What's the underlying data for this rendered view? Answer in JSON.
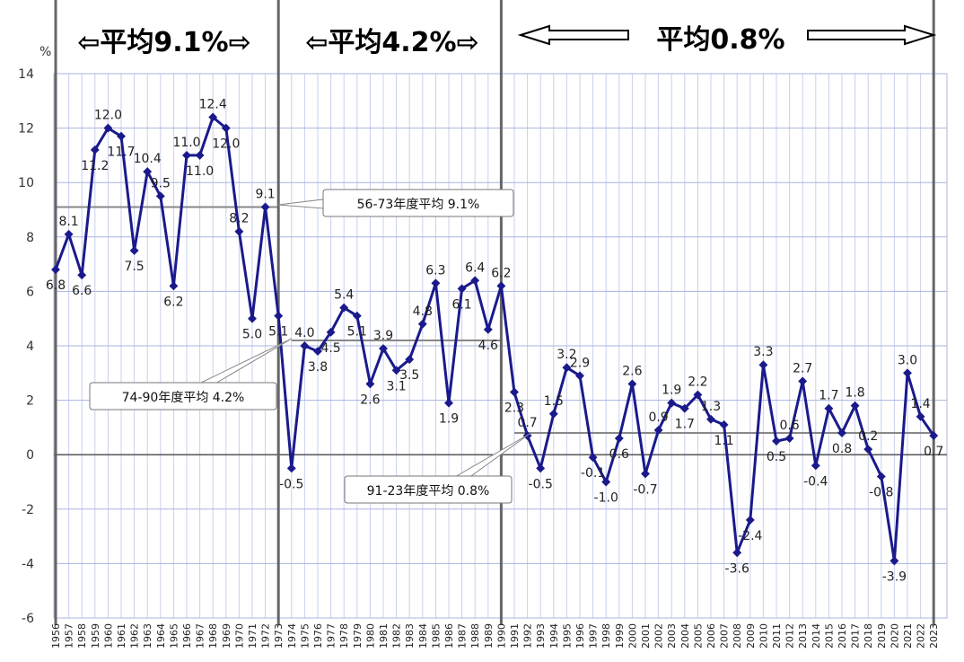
{
  "header": {
    "bands": [
      {
        "text": "⇦平均9.1%⇨",
        "color": "#000000"
      },
      {
        "text": "⇦平均4.2%⇨",
        "color": "#000000"
      },
      {
        "text": "平均0.8%",
        "color": "#e8262c"
      }
    ]
  },
  "callouts": [
    {
      "text": "56-73年度平均 9.1%"
    },
    {
      "text": "74-90年度平均 4.2%"
    },
    {
      "text": "91-23年度平均 0.8%"
    }
  ],
  "colors": {
    "line": "#1a1a8c",
    "grid": "#c8d0f0",
    "avg_line": "#888888",
    "separator": "#666666",
    "accent_red": "#e8262c"
  },
  "chart_data": {
    "type": "line",
    "yunit": "%",
    "ylim": [
      -6,
      14
    ],
    "yticks": [
      "14",
      "12",
      "10",
      "8",
      "6",
      "4",
      "2",
      "0",
      "-2",
      "-4",
      "-6"
    ],
    "grid": true,
    "x": [
      "1956",
      "1957",
      "1958",
      "1959",
      "1960",
      "1961",
      "1962",
      "1963",
      "1964",
      "1965",
      "1966",
      "1967",
      "1968",
      "1969",
      "1970",
      "1971",
      "1972",
      "1973",
      "1974",
      "1975",
      "1976",
      "1977",
      "1978",
      "1979",
      "1980",
      "1981",
      "1982",
      "1983",
      "1984",
      "1985",
      "1986",
      "1987",
      "1988",
      "1989",
      "1990",
      "1991",
      "1992",
      "1993",
      "1994",
      "1995",
      "1996",
      "1997",
      "1998",
      "1999",
      "2000",
      "2001",
      "2002",
      "2003",
      "2004",
      "2005",
      "2006",
      "2007",
      "2008",
      "2009",
      "2010",
      "2011",
      "2012",
      "2013",
      "2014",
      "2015",
      "2016",
      "2017",
      "2018",
      "2019",
      "2020",
      "2021",
      "2022",
      "2023"
    ],
    "values": [
      6.8,
      8.1,
      6.6,
      11.2,
      12.0,
      11.7,
      7.5,
      10.4,
      9.5,
      6.2,
      11.0,
      11.0,
      12.4,
      12.0,
      8.2,
      5.0,
      9.1,
      5.1,
      -0.5,
      4.0,
      3.8,
      4.5,
      5.4,
      5.1,
      2.6,
      3.9,
      3.1,
      3.5,
      4.8,
      6.3,
      1.9,
      6.1,
      6.4,
      4.6,
      6.2,
      2.3,
      0.7,
      -0.5,
      1.5,
      3.2,
      2.9,
      -0.1,
      -1.0,
      0.6,
      2.6,
      -0.7,
      0.9,
      1.9,
      1.7,
      2.2,
      1.3,
      1.1,
      -3.6,
      -2.4,
      3.3,
      0.5,
      0.6,
      2.7,
      -0.4,
      1.7,
      0.8,
      1.8,
      0.2,
      -0.8,
      -3.9,
      3.0,
      1.4,
      0.7
    ],
    "labels": [
      "6.8",
      "8.1",
      "6.6",
      "11.2",
      "12.0",
      "11.7",
      "7.5",
      "10.4",
      "9.5",
      "6.2",
      "11.0",
      "11.0",
      "12.4",
      "12.0",
      "8.2",
      "5.0",
      "9.1",
      "5.1",
      "-0.5",
      "4.0",
      "3.8",
      "4.5",
      "5.4",
      "5.1",
      "2.6",
      "3.9",
      "3.1",
      "3.5",
      "4.8",
      "6.3",
      "1.9",
      "6.1",
      "6.4",
      "4.6",
      "6.2",
      "2.3",
      "0.7",
      "-0.5",
      "1.5",
      "3.2",
      "2.9",
      "-0.1",
      "-1.0",
      "0.6",
      "2.6",
      "-0.7",
      "0.9",
      "1.9",
      "1.7",
      "2.2",
      "1.3",
      "1.1",
      "-3.6",
      "-2.4",
      "3.3",
      "0.5",
      "0.6",
      "2.7",
      "-0.4",
      "1.7",
      "0.8",
      "1.8",
      "0.2",
      "-0.8",
      "-3.9",
      "3.0",
      "1.4",
      "0.7"
    ],
    "averages": [
      {
        "from": "1956",
        "to": "1973",
        "value": 9.1
      },
      {
        "from": "1974",
        "to": "1990",
        "value": 4.2
      },
      {
        "from": "1991",
        "to": "2023",
        "value": 0.8
      }
    ],
    "period_separators": [
      "1956",
      "1973",
      "1990",
      "2023"
    ]
  }
}
